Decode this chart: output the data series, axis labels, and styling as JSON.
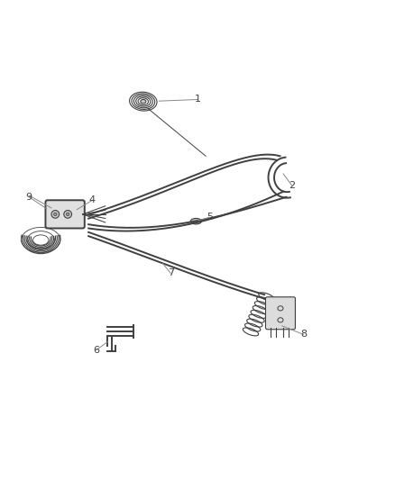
{
  "bg_color": "#ffffff",
  "line_color": "#404040",
  "label_color": "#404040",
  "label_leader_color": "#888888"
}
